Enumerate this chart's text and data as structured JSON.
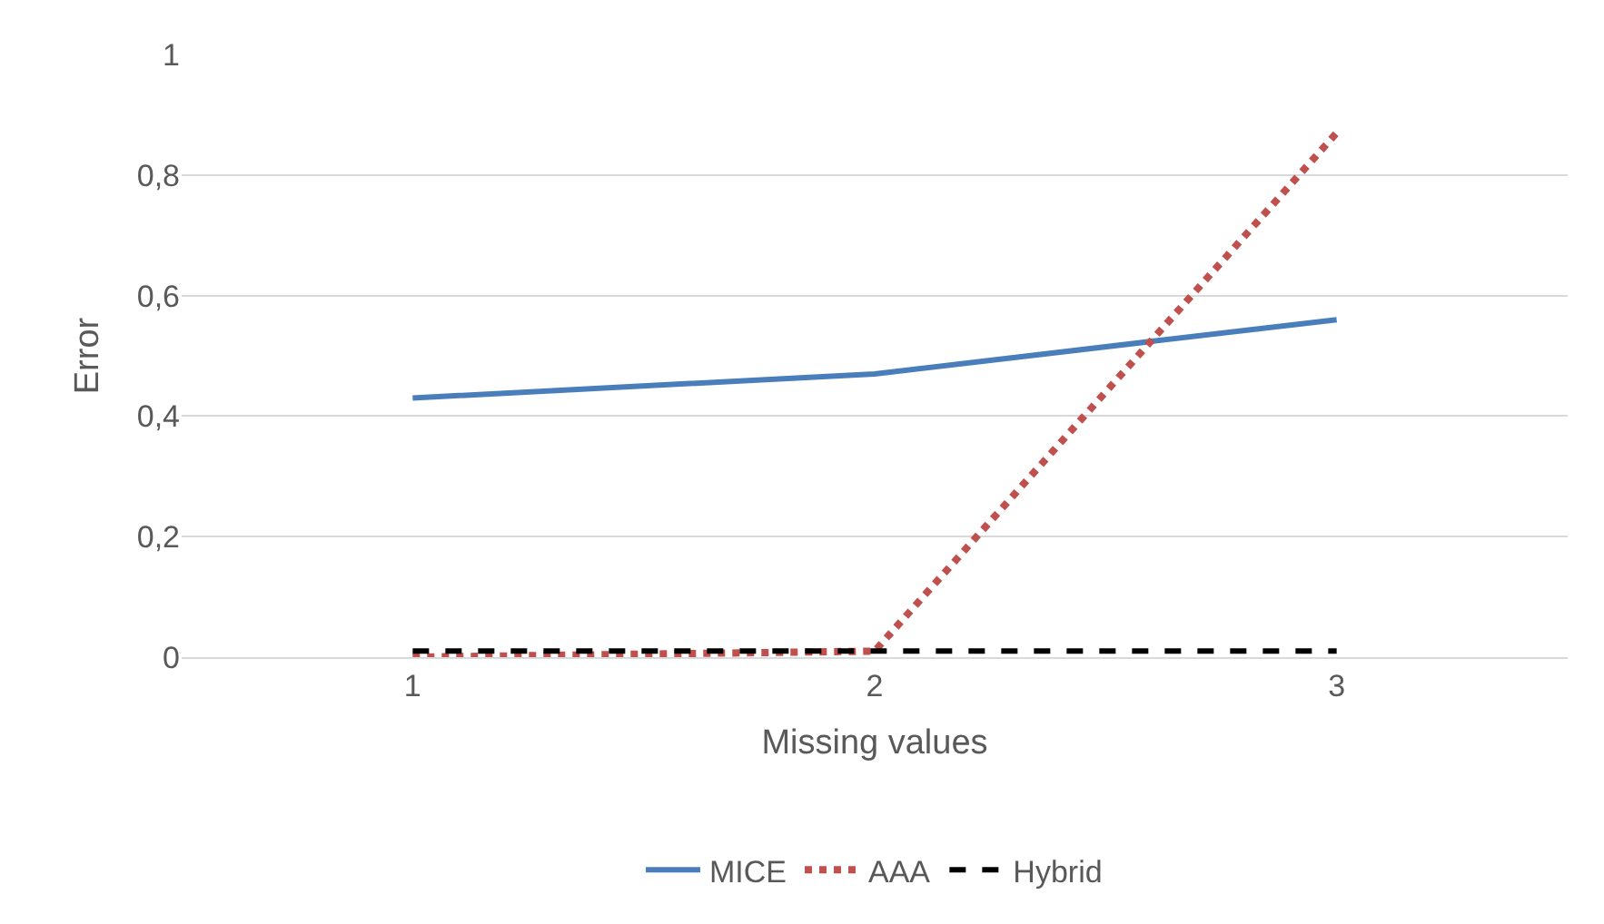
{
  "chart_data": {
    "type": "line",
    "xlabel": "Missing values",
    "ylabel": "Error",
    "categories": [
      "1",
      "2",
      "3"
    ],
    "series": [
      {
        "name": "MICE",
        "color": "#4a7ebb",
        "values": [
          0.43,
          0.47,
          0.56
        ],
        "line_style": "solid"
      },
      {
        "name": "AAA",
        "color": "#c0504d",
        "values": [
          0.0,
          0.01,
          0.87
        ],
        "line_style": "dotted"
      },
      {
        "name": "Hybrid",
        "color": "#000000",
        "values": [
          0.01,
          0.01,
          0.01
        ],
        "line_style": "dashed"
      }
    ],
    "ylim": [
      0,
      1
    ],
    "yticks": [
      0,
      {
        "value": 0.2,
        "label": "0,2"
      },
      {
        "value": 0.4,
        "label": "0,4"
      },
      {
        "value": 0.6,
        "label": "0,6"
      },
      {
        "value": 0.8,
        "label": "0,8"
      },
      1
    ],
    "grid": "y",
    "legend": "bottom",
    "marker": "none"
  }
}
